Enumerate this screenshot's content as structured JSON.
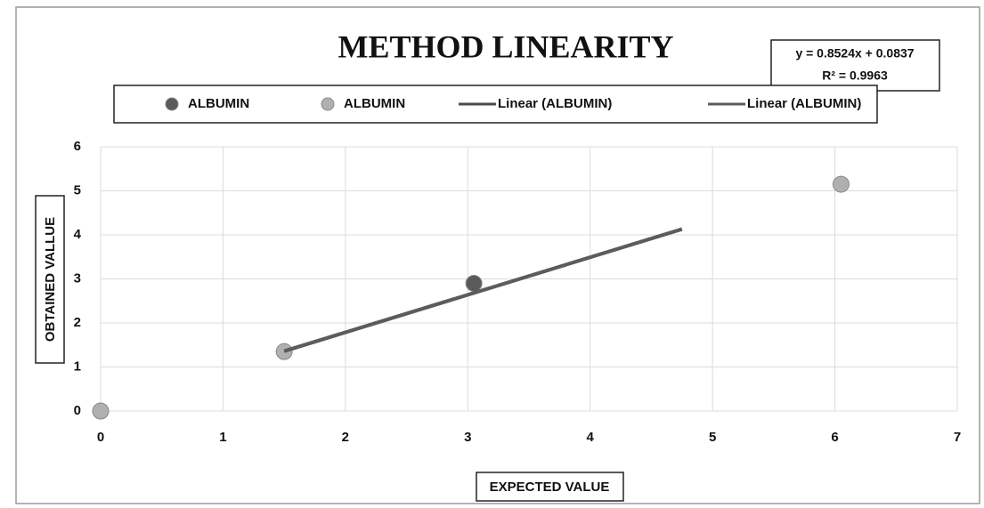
{
  "chart_data": {
    "type": "scatter",
    "title": "METHOD LINEARITY",
    "annotations": [
      "y = 0.8524x + 0.0837",
      "R² = 0.9963"
    ],
    "x_label": "EXPECTED VALUE",
    "y_label": "OBTAINED VALLUE",
    "xlim": [
      0,
      7
    ],
    "xticks": [
      0,
      1,
      2,
      3,
      4,
      5,
      6,
      7
    ],
    "ylim": [
      0,
      6
    ],
    "yticks": [
      0,
      1,
      2,
      3,
      4,
      5,
      6
    ],
    "grid": true,
    "series": [
      {
        "name": "ALBUMIN",
        "style": "marker",
        "color": "#5a5a5a",
        "x": [
          3.05
        ],
        "values": [
          2.9
        ]
      },
      {
        "name": "ALBUMIN",
        "style": "marker",
        "color": "#b0b0b0",
        "x": [
          0,
          1.5,
          6.05
        ],
        "values": [
          0,
          1.35,
          5.15
        ]
      },
      {
        "name": "Linear (ALBUMIN)",
        "style": "line",
        "color": "#4a4a4a",
        "x": [
          1.5,
          4.75
        ],
        "values": [
          1.36,
          4.13
        ]
      },
      {
        "name": "Linear (ALBUMIN)",
        "style": "line",
        "color": "#5c5c5c",
        "x": [
          1.5,
          4.75
        ],
        "values": [
          1.36,
          4.13
        ]
      }
    ]
  }
}
